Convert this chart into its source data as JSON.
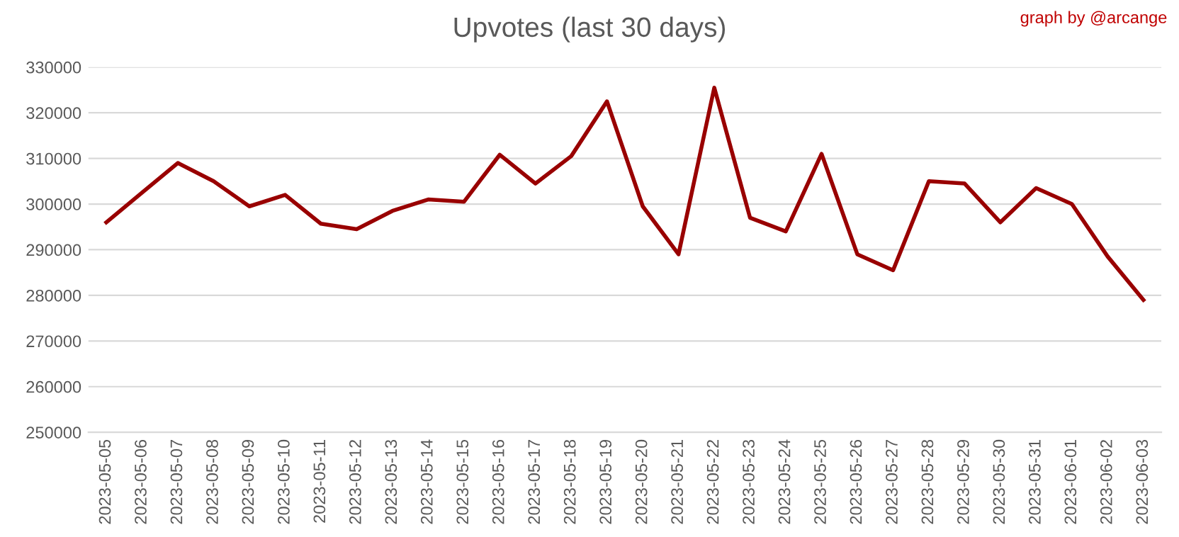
{
  "chart_data": {
    "type": "line",
    "title": "Upvotes (last 30 days)",
    "annotations": [
      "graph by @arcange"
    ],
    "categories": [
      "2023-05-05",
      "2023-05-06",
      "2023-05-07",
      "2023-05-08",
      "2023-05-09",
      "2023-05-10",
      "2023-05-11",
      "2023-05-12",
      "2023-05-13",
      "2023-05-14",
      "2023-05-15",
      "2023-05-16",
      "2023-05-17",
      "2023-05-18",
      "2023-05-19",
      "2023-05-20",
      "2023-05-21",
      "2023-05-22",
      "2023-05-23",
      "2023-05-24",
      "2023-05-25",
      "2023-05-26",
      "2023-05-27",
      "2023-05-28",
      "2023-05-29",
      "2023-05-30",
      "2023-05-31",
      "2023-06-01",
      "2023-06-02",
      "2023-06-03"
    ],
    "series": [
      {
        "color": "#990000",
        "values": [
          296000,
          302500,
          309000,
          305000,
          299500,
          302000,
          295700,
          294500,
          298500,
          301000,
          300500,
          310800,
          304500,
          310500,
          322500,
          299500,
          289000,
          325500,
          297000,
          294000,
          311000,
          289000,
          285500,
          305000,
          304500,
          296000,
          303500,
          300000,
          288500,
          279000
        ]
      }
    ],
    "ylim": [
      250000,
      330000
    ],
    "yticks": [
      250000,
      260000,
      270000,
      280000,
      290000,
      300000,
      310000,
      320000,
      330000
    ],
    "grid": "y",
    "legend": false,
    "marker": "none",
    "line_style": "solid"
  }
}
